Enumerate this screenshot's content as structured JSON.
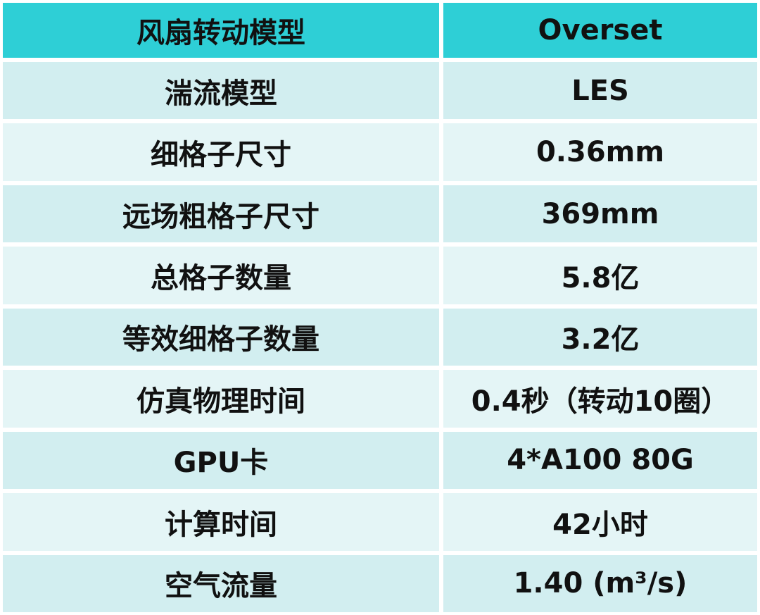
{
  "table": {
    "header": [
      "风扇转动模型",
      "Overset"
    ],
    "rows": [
      [
        "湍流模型",
        "LES"
      ],
      [
        "细格子尺寸",
        "0.36mm"
      ],
      [
        "远场粗格子尺寸",
        "369mm"
      ],
      [
        "总格子数量",
        "5.8亿"
      ],
      [
        "等效细格子数量",
        "3.2亿"
      ],
      [
        "仿真物理时间",
        "0.4秒（转动10圈）"
      ],
      [
        "GPU卡",
        "4*A100 80G"
      ],
      [
        "计算时间",
        "42小时"
      ],
      [
        "空气流量",
        "1.40 (m³/s)"
      ]
    ]
  }
}
